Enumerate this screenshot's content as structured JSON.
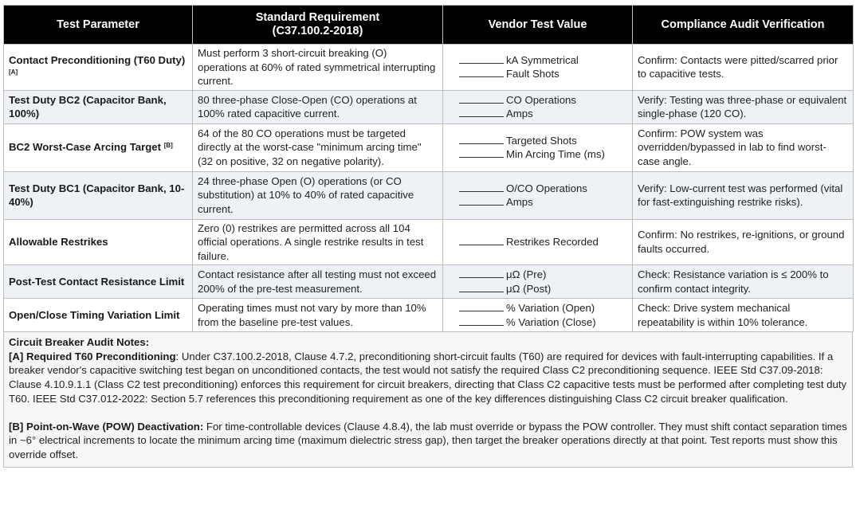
{
  "headers": [
    "Test Parameter",
    "Standard Requirement\n(C37.100.2-2018)",
    "Vendor Test Value",
    "Compliance Audit Verification"
  ],
  "rows": [
    {
      "param": "Contact Preconditioning (T60 Duty)",
      "ref": "[A]",
      "requirement": "Must perform 3 short-circuit breaking (O) operations at 60% of rated symmetrical interrupting current.",
      "values": [
        "kA Symmetrical",
        "Fault Shots"
      ],
      "verification": "Confirm: Contacts were pitted/scarred prior to capacitive tests."
    },
    {
      "param": "Test Duty BC2 (Capacitor Bank, 100%)",
      "ref": "",
      "requirement": "80 three-phase Close-Open (CO) operations at 100% rated capacitive current.",
      "values": [
        "CO Operations",
        "Amps"
      ],
      "verification": "Verify: Testing was three-phase or equivalent single-phase (120 CO)."
    },
    {
      "param": "BC2 Worst-Case Arcing Target",
      "ref": "[B]",
      "requirement": "64 of the 80 CO operations must be targeted directly at the worst-case \"minimum arcing time\" (32 on positive, 32 on negative polarity).",
      "values": [
        "Targeted Shots",
        "Min Arcing Time (ms)"
      ],
      "verification": "Confirm: POW system was overridden/bypassed in lab to find worst-case angle."
    },
    {
      "param": "Test Duty BC1 (Capacitor Bank, 10-40%)",
      "ref": "",
      "requirement": "24 three-phase Open (O) operations (or CO substitution) at 10% to 40% of rated capacitive current.",
      "values": [
        "O/CO Operations",
        "Amps"
      ],
      "verification": "Verify: Low-current test was performed (vital for fast-extinguishing restrike risks)."
    },
    {
      "param": "Allowable Restrikes",
      "ref": "",
      "requirement": "Zero (0) restrikes are permitted across all 104 official operations. A single restrike results in test failure.",
      "values": [
        "Restrikes Recorded"
      ],
      "verification": "Confirm: No restrikes, re-ignitions, or ground faults occurred."
    },
    {
      "param": "Post-Test Contact Resistance Limit",
      "ref": "",
      "requirement": "Contact resistance after all testing must not exceed 200% of the pre-test measurement.",
      "values": [
        "μΩ (Pre)",
        "μΩ (Post)"
      ],
      "verification": "Check: Resistance variation is ≤ 200% to confirm contact integrity."
    },
    {
      "param": "Open/Close Timing Variation Limit",
      "ref": "",
      "requirement": "Operating times must not vary by more than 10% from the baseline pre-test values.",
      "values": [
        "% Variation (Open)",
        "% Variation (Close)"
      ],
      "verification": "Check: Drive system mechanical repeatability is within 10% tolerance."
    }
  ],
  "notes": {
    "title": "Circuit Breaker Audit Notes:",
    "a_label": "[A] Required T60 Preconditioning",
    "a_text": ": Under C37.100.2-2018, Clause 4.7.2, preconditioning short-circuit faults (T60) are required for devices with fault-interrupting capabilities. If a breaker vendor's capacitive switching test began on unconditioned contacts, the test would not satisfy the required Class C2 preconditioning sequence. IEEE Std C37.09-2018: Clause 4.10.9.1.1 (Class C2 test preconditioning) enforces this requirement for circuit breakers, directing that Class C2 capacitive tests must be performed after completing test duty T60. IEEE Std C37.012-2022: Section 5.7 references this preconditioning requirement as one of the key differences distinguishing Class C2 circuit breaker qualification.",
    "b_label": "[B] Point-on-Wave (POW) Deactivation:",
    "b_text": " For time-controllable devices (Clause 4.8.4), the lab must override or bypass the POW controller. They must shift contact separation times in ~6° electrical increments to locate the minimum arcing time (maximum dielectric stress gap), then target the breaker operations directly at that point. Test reports must show this override offset."
  }
}
